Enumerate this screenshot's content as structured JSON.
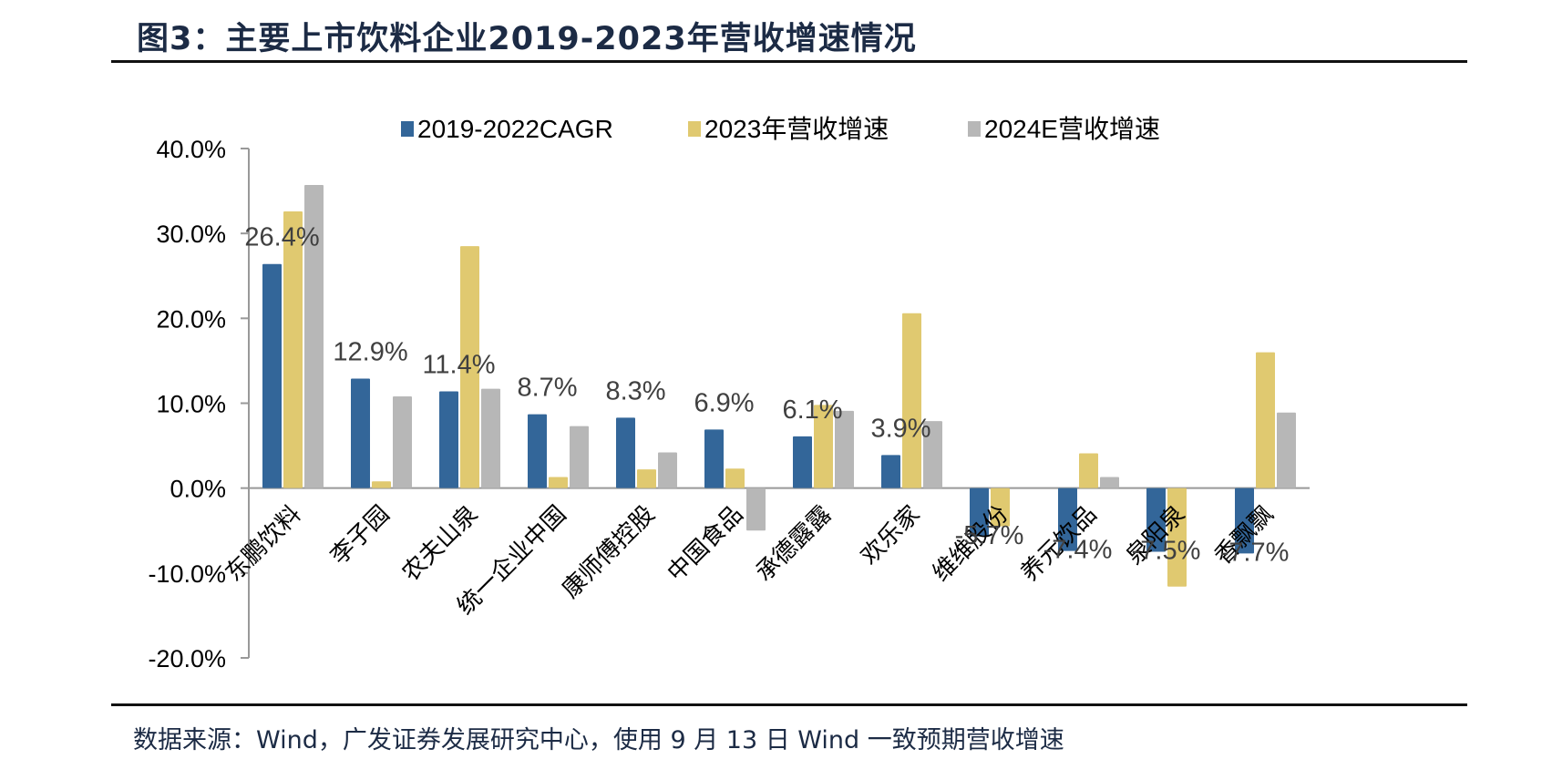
{
  "header": {
    "title": "图3：主要上市饮料企业2019-2023年营收增速情况"
  },
  "footer": {
    "source": "数据来源：Wind，广发证券发展研究中心，使用 9 月 13 日 Wind 一致预期营收增速"
  },
  "chart_data": {
    "type": "bar",
    "title": "主要上市饮料企业2019-2023年营收增速情况",
    "xlabel": "",
    "ylabel": "",
    "ylim": [
      -20,
      40
    ],
    "yticks": [
      40,
      30,
      20,
      10,
      0,
      -10,
      -20
    ],
    "ytick_labels": [
      "40.0%",
      "30.0%",
      "20.0%",
      "10.0%",
      "0.0%",
      "-10.0%",
      "-20.0%"
    ],
    "grid": false,
    "legend_position": "top",
    "categories": [
      "东鹏饮料",
      "李子园",
      "农夫山泉",
      "统一企业中国",
      "康师傅控股",
      "中国食品",
      "承德露露",
      "欢乐家",
      "维维股份",
      "养元饮品",
      "泉阳泉",
      "香飘飘"
    ],
    "series": [
      {
        "name": "2019-2022CAGR",
        "color": "#336699",
        "values": [
          26.4,
          12.9,
          11.4,
          8.7,
          8.3,
          6.9,
          6.1,
          3.9,
          -5.7,
          -7.4,
          -7.5,
          -7.7
        ],
        "data_labels": [
          "26.4%",
          "12.9%",
          "11.4%",
          "8.7%",
          "8.3%",
          "6.9%",
          "6.1%",
          "3.9%",
          "-5.7%",
          "-7.4%",
          "-7.5%",
          "-7.7%"
        ]
      },
      {
        "name": "2023年营收增速",
        "color": "#E0C970",
        "values": [
          32.6,
          0.8,
          28.5,
          1.3,
          2.2,
          2.3,
          9.8,
          20.6,
          -4.5,
          4.1,
          -11.6,
          16.0
        ]
      },
      {
        "name": "2024E营收增速",
        "color": "#B7B7B7",
        "values": [
          35.7,
          10.8,
          11.7,
          7.3,
          4.2,
          -5.0,
          9.1,
          7.9,
          null,
          1.3,
          null,
          8.9
        ]
      }
    ]
  }
}
